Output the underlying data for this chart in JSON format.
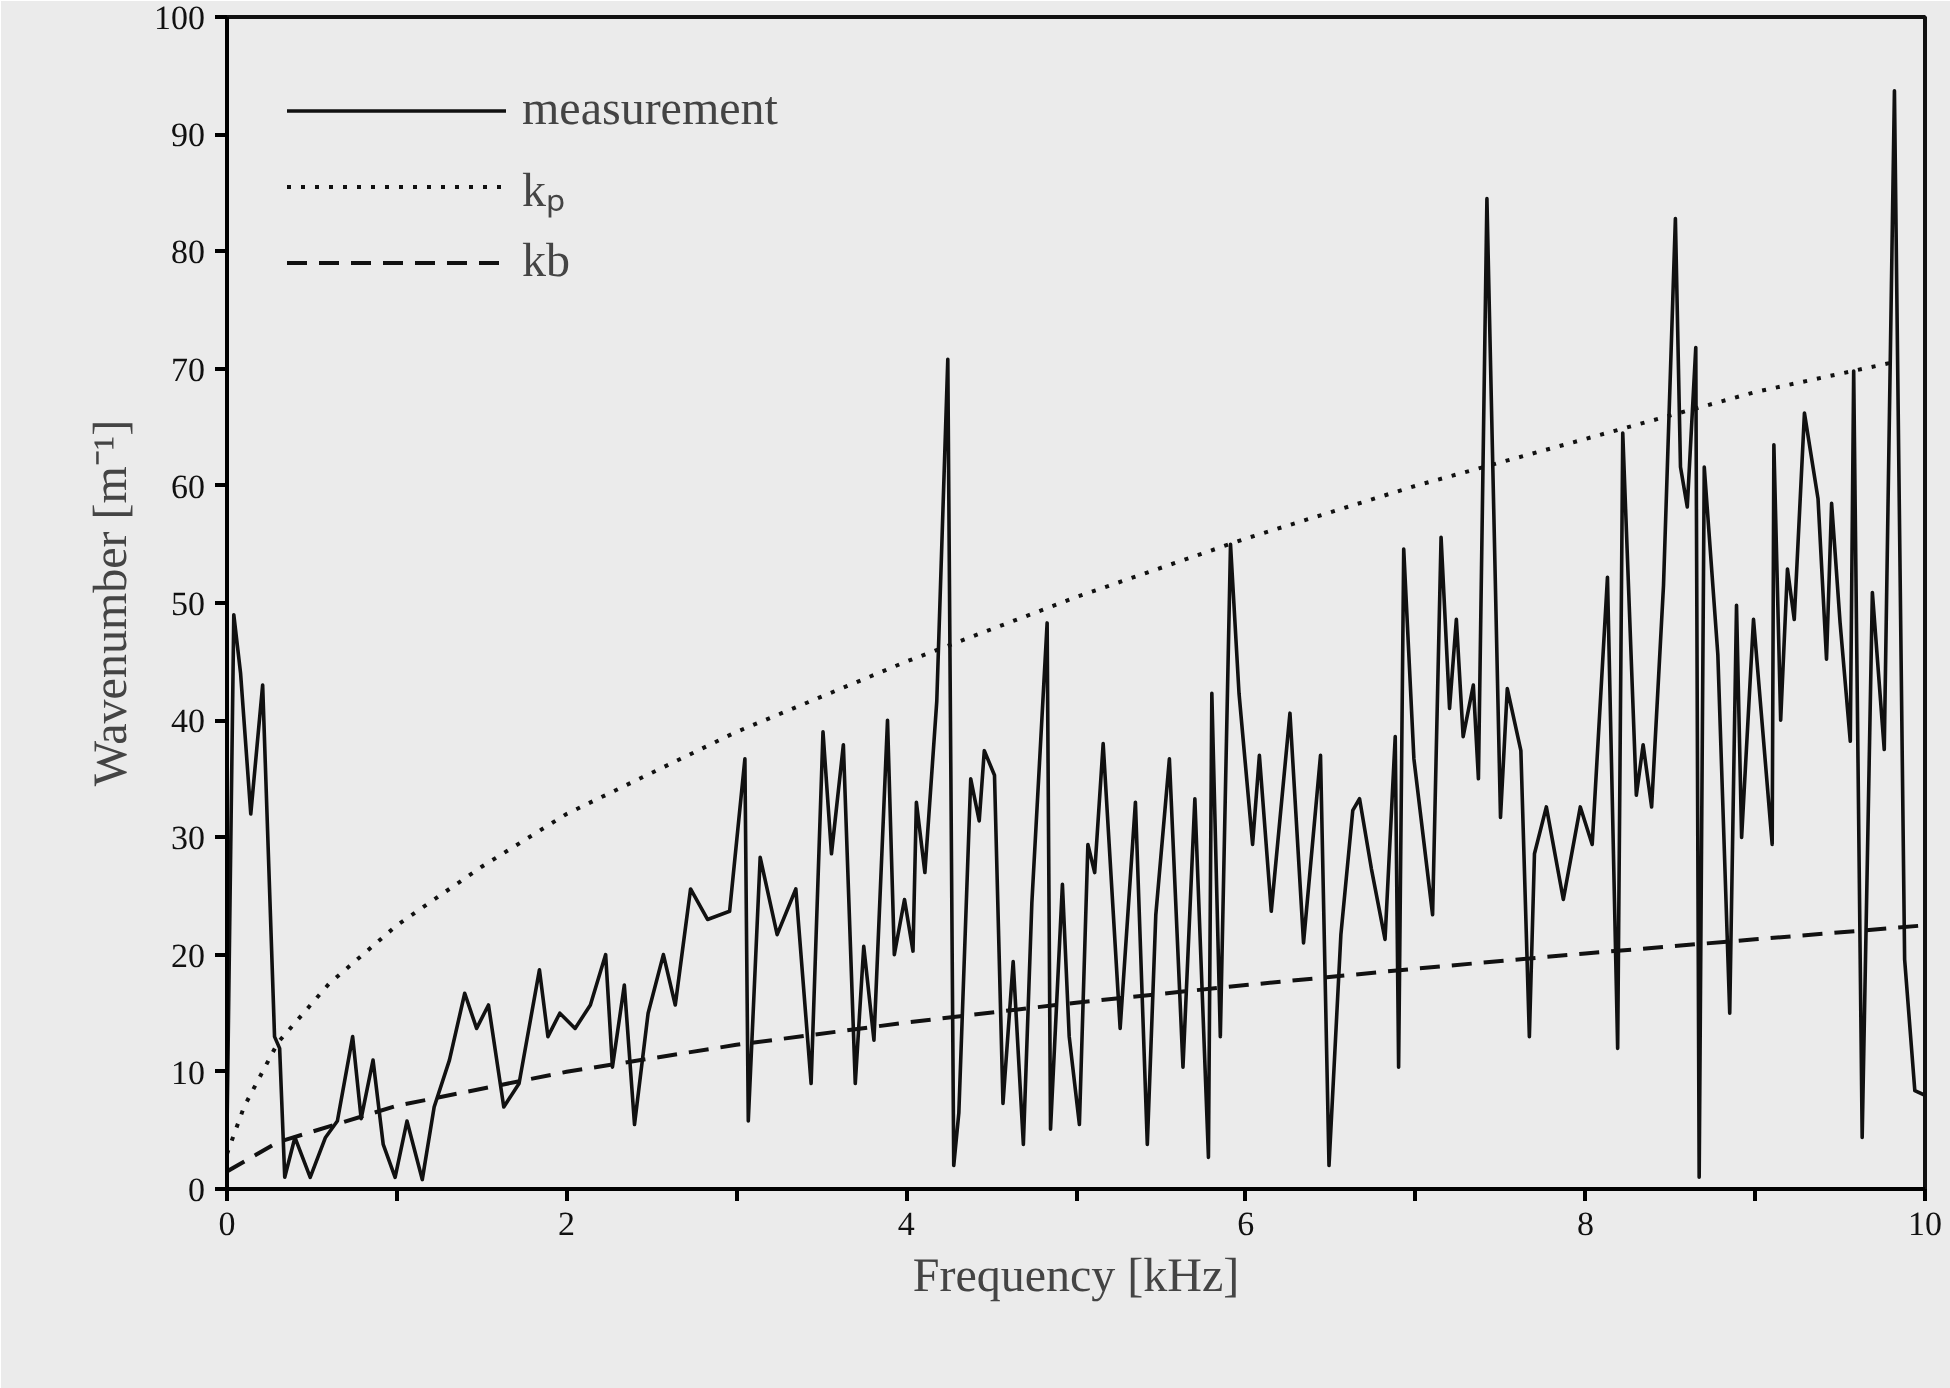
{
  "chart_data": {
    "type": "line",
    "xlabel": "Frequency [kHz]",
    "ylabel": "Wavenumber [m⁻¹]",
    "xlim": [
      0,
      10
    ],
    "ylim": [
      0,
      100
    ],
    "xticks": [
      0,
      {
        "value": 1,
        "label": null
      },
      2,
      {
        "value": 3,
        "label": null
      },
      4,
      {
        "value": 5,
        "label": null
      },
      6,
      {
        "value": 7,
        "label": null
      },
      8,
      {
        "value": 9,
        "label": null
      },
      10
    ],
    "yticks": [
      0,
      10,
      20,
      30,
      40,
      50,
      60,
      70,
      80,
      90,
      100
    ],
    "grid": false,
    "legend": "top left",
    "series": [
      {
        "name": "measurement",
        "color": "#111111",
        "line_style": "solid",
        "x": [
          0,
          0.04,
          0.08,
          0.14,
          0.21,
          0.28,
          0.31,
          0.34,
          0.4,
          0.49,
          0.58,
          0.65,
          0.74,
          0.79,
          0.86,
          0.92,
          0.99,
          1.06,
          1.15,
          1.22,
          1.31,
          1.4,
          1.47,
          1.54,
          1.63,
          1.72,
          1.84,
          1.89,
          1.96,
          2.05,
          2.14,
          2.23,
          2.27,
          2.34,
          2.4,
          2.48,
          2.57,
          2.64,
          2.73,
          2.83,
          2.96,
          3.05,
          3.07,
          3.14,
          3.24,
          3.35,
          3.44,
          3.51,
          3.56,
          3.63,
          3.7,
          3.75,
          3.81,
          3.89,
          3.93,
          3.99,
          4.04,
          4.06,
          4.11,
          4.18,
          4.245,
          4.28,
          4.31,
          4.38,
          4.43,
          4.46,
          4.52,
          4.57,
          4.63,
          4.69,
          4.74,
          4.83,
          4.85,
          4.92,
          4.96,
          5.02,
          5.07,
          5.11,
          5.16,
          5.26,
          5.35,
          5.42,
          5.47,
          5.55,
          5.63,
          5.7,
          5.78,
          5.8,
          5.85,
          5.91,
          5.96,
          6.04,
          6.08,
          6.15,
          6.26,
          6.34,
          6.44,
          6.49,
          6.56,
          6.63,
          6.67,
          6.74,
          6.82,
          6.88,
          6.9,
          6.93,
          6.99,
          7.1,
          7.15,
          7.2,
          7.24,
          7.28,
          7.34,
          7.37,
          7.42,
          7.5,
          7.54,
          7.62,
          7.67,
          7.7,
          7.77,
          7.87,
          7.97,
          8.04,
          8.13,
          8.19,
          8.22,
          8.3,
          8.34,
          8.39,
          8.46,
          8.53,
          8.56,
          8.6,
          8.65,
          8.67,
          8.7,
          8.78,
          8.85,
          8.89,
          8.92,
          8.99,
          9.1,
          9.11,
          9.15,
          9.19,
          9.23,
          9.29,
          9.37,
          9.42,
          9.45,
          9.5,
          9.56,
          9.58,
          9.63,
          9.69,
          9.76,
          9.82,
          9.88,
          9.94,
          10
        ],
        "values": [
          5,
          49,
          44,
          32,
          43,
          13,
          12,
          1,
          4.4,
          1,
          4.4,
          5.8,
          13,
          6,
          11,
          3.8,
          1,
          5.8,
          0.8,
          7,
          11,
          16.7,
          13.7,
          15.7,
          7,
          9,
          18.7,
          13,
          15,
          13.7,
          15.7,
          20,
          10.4,
          17.4,
          5.5,
          15,
          20,
          15.7,
          25.6,
          23,
          23.7,
          36.7,
          5.8,
          28.3,
          21.7,
          25.6,
          9,
          39,
          28.6,
          37.9,
          9,
          20.7,
          12.7,
          40,
          20,
          24.7,
          20.3,
          33,
          27,
          41.6,
          70.8,
          2,
          6.5,
          35,
          31.4,
          37.4,
          35.3,
          7.3,
          19.4,
          3.8,
          24.4,
          48.3,
          5.1,
          26,
          13,
          5.5,
          29.4,
          27,
          38,
          13.7,
          33,
          3.8,
          23.4,
          36.7,
          10.4,
          33.3,
          2.7,
          42.3,
          13,
          55,
          42.3,
          29.4,
          37,
          23.7,
          40.6,
          21,
          37,
          2,
          21.7,
          32.3,
          33.3,
          27.3,
          21.3,
          38.6,
          10.4,
          54.6,
          36.7,
          23.4,
          55.6,
          41,
          48.6,
          38.6,
          43,
          35,
          84.5,
          31.7,
          42.7,
          37.4,
          13,
          28.6,
          32.6,
          24.7,
          32.6,
          29.4,
          52.2,
          12,
          64.5,
          33.6,
          37.9,
          32.6,
          51.5,
          82.8,
          61.6,
          58.2,
          71.8,
          1,
          61.6,
          45.6,
          15,
          49.8,
          30,
          48.6,
          29.4,
          63.5,
          40,
          52.9,
          48.6,
          66.2,
          58.9,
          45.2,
          58.5,
          48.3,
          38.2,
          69.8,
          4.4,
          50.9,
          37.5,
          93.7,
          19.6,
          8.4,
          8
        ]
      },
      {
        "name": "kₚ",
        "color": "#111111",
        "line_style": "dotted",
        "x": [
          0,
          0.1,
          0.3,
          0.6,
          1,
          1.5,
          2,
          3,
          4,
          5,
          6,
          7,
          8,
          9,
          9.8
        ],
        "values": [
          3,
          7,
          12.5,
          17.5,
          22.5,
          27.5,
          32,
          39,
          45,
          50.5,
          55.5,
          60,
          64,
          68,
          70.5
        ]
      },
      {
        "name": "kb",
        "color": "#111111",
        "line_style": "dashed",
        "x": [
          0,
          0.3,
          1,
          2,
          3,
          4,
          5,
          6,
          7,
          8,
          9,
          10
        ],
        "values": [
          1.5,
          4,
          7.1,
          10,
          12.3,
          14.2,
          15.9,
          17.4,
          18.8,
          20.1,
          21.3,
          22.5
        ]
      }
    ]
  }
}
